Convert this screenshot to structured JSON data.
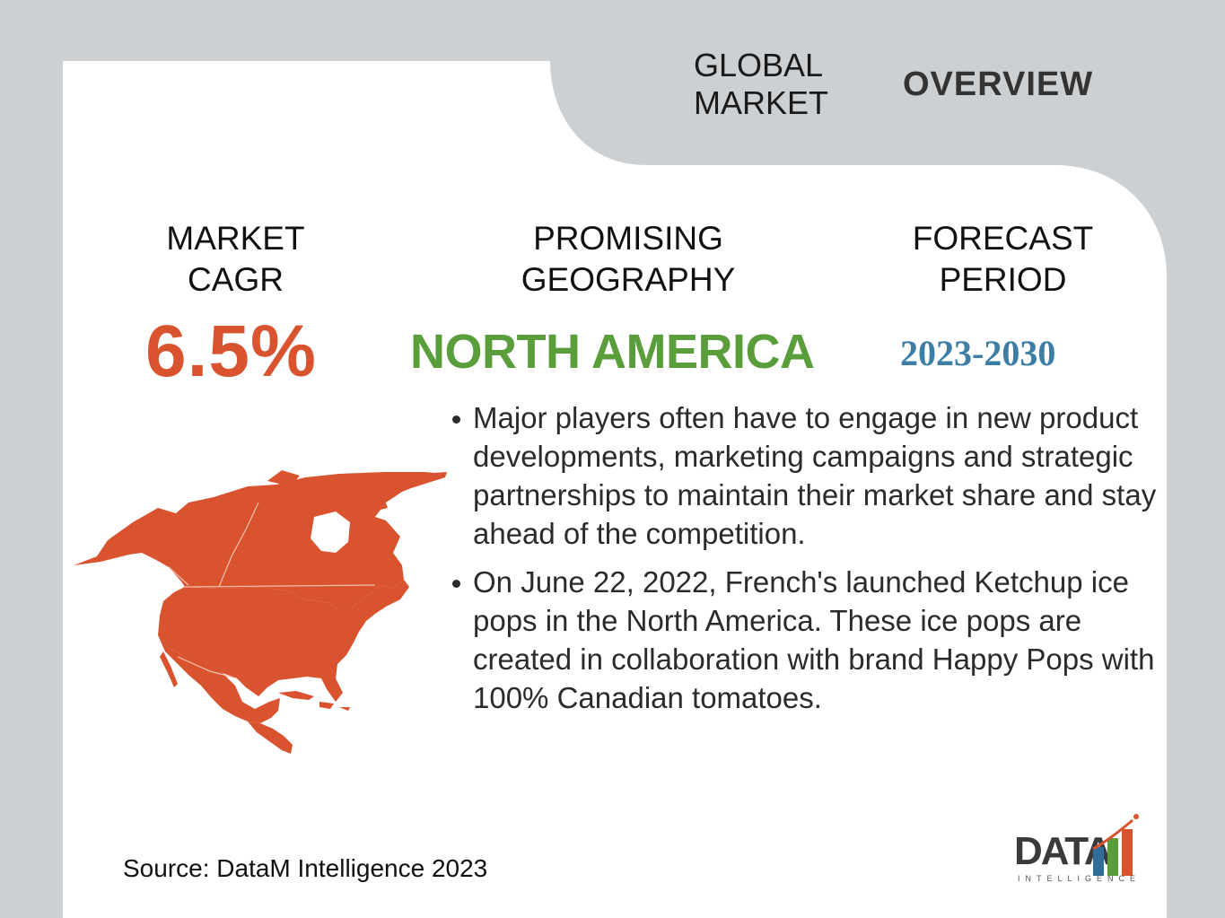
{
  "header": {
    "title_line1": "GLOBAL",
    "title_line2": "MARKET",
    "title_accent": "OVERVIEW"
  },
  "metrics": [
    {
      "label_line1": "MARKET",
      "label_line2": "CAGR",
      "value": "6.5%",
      "color": "#d9532f"
    },
    {
      "label_line1": "PROMISING",
      "label_line2": "GEOGRAPHY",
      "value": "NORTH AMERICA",
      "color": "#5a9e3b"
    },
    {
      "label_line1": "FORECAST",
      "label_line2": "PERIOD",
      "value": "2023-2030",
      "color": "#3d7ea6"
    }
  ],
  "bullets": [
    "Major players often have to engage in new product developments, marketing campaigns and strategic partnerships to maintain their market share and stay ahead of the competition.",
    "On June 22, 2022, French's launched Ketchup ice pops in the North America. These ice pops are created in collaboration with brand Happy Pops with 100% Canadian tomatoes."
  ],
  "map": {
    "icon": "north-america-map-icon",
    "color": "#d9532f"
  },
  "footer": {
    "source": "Source: DataM Intelligence 2023"
  },
  "logo": {
    "word": "DATA",
    "sub": "INTELLIGENCE",
    "icon": "bar-chart-logo-icon"
  },
  "colors": {
    "background": "#cdd0d3",
    "card": "#ffffff",
    "accent_orange": "#d9532f",
    "accent_green": "#5a9e3b",
    "accent_blue": "#3d7ea6"
  }
}
